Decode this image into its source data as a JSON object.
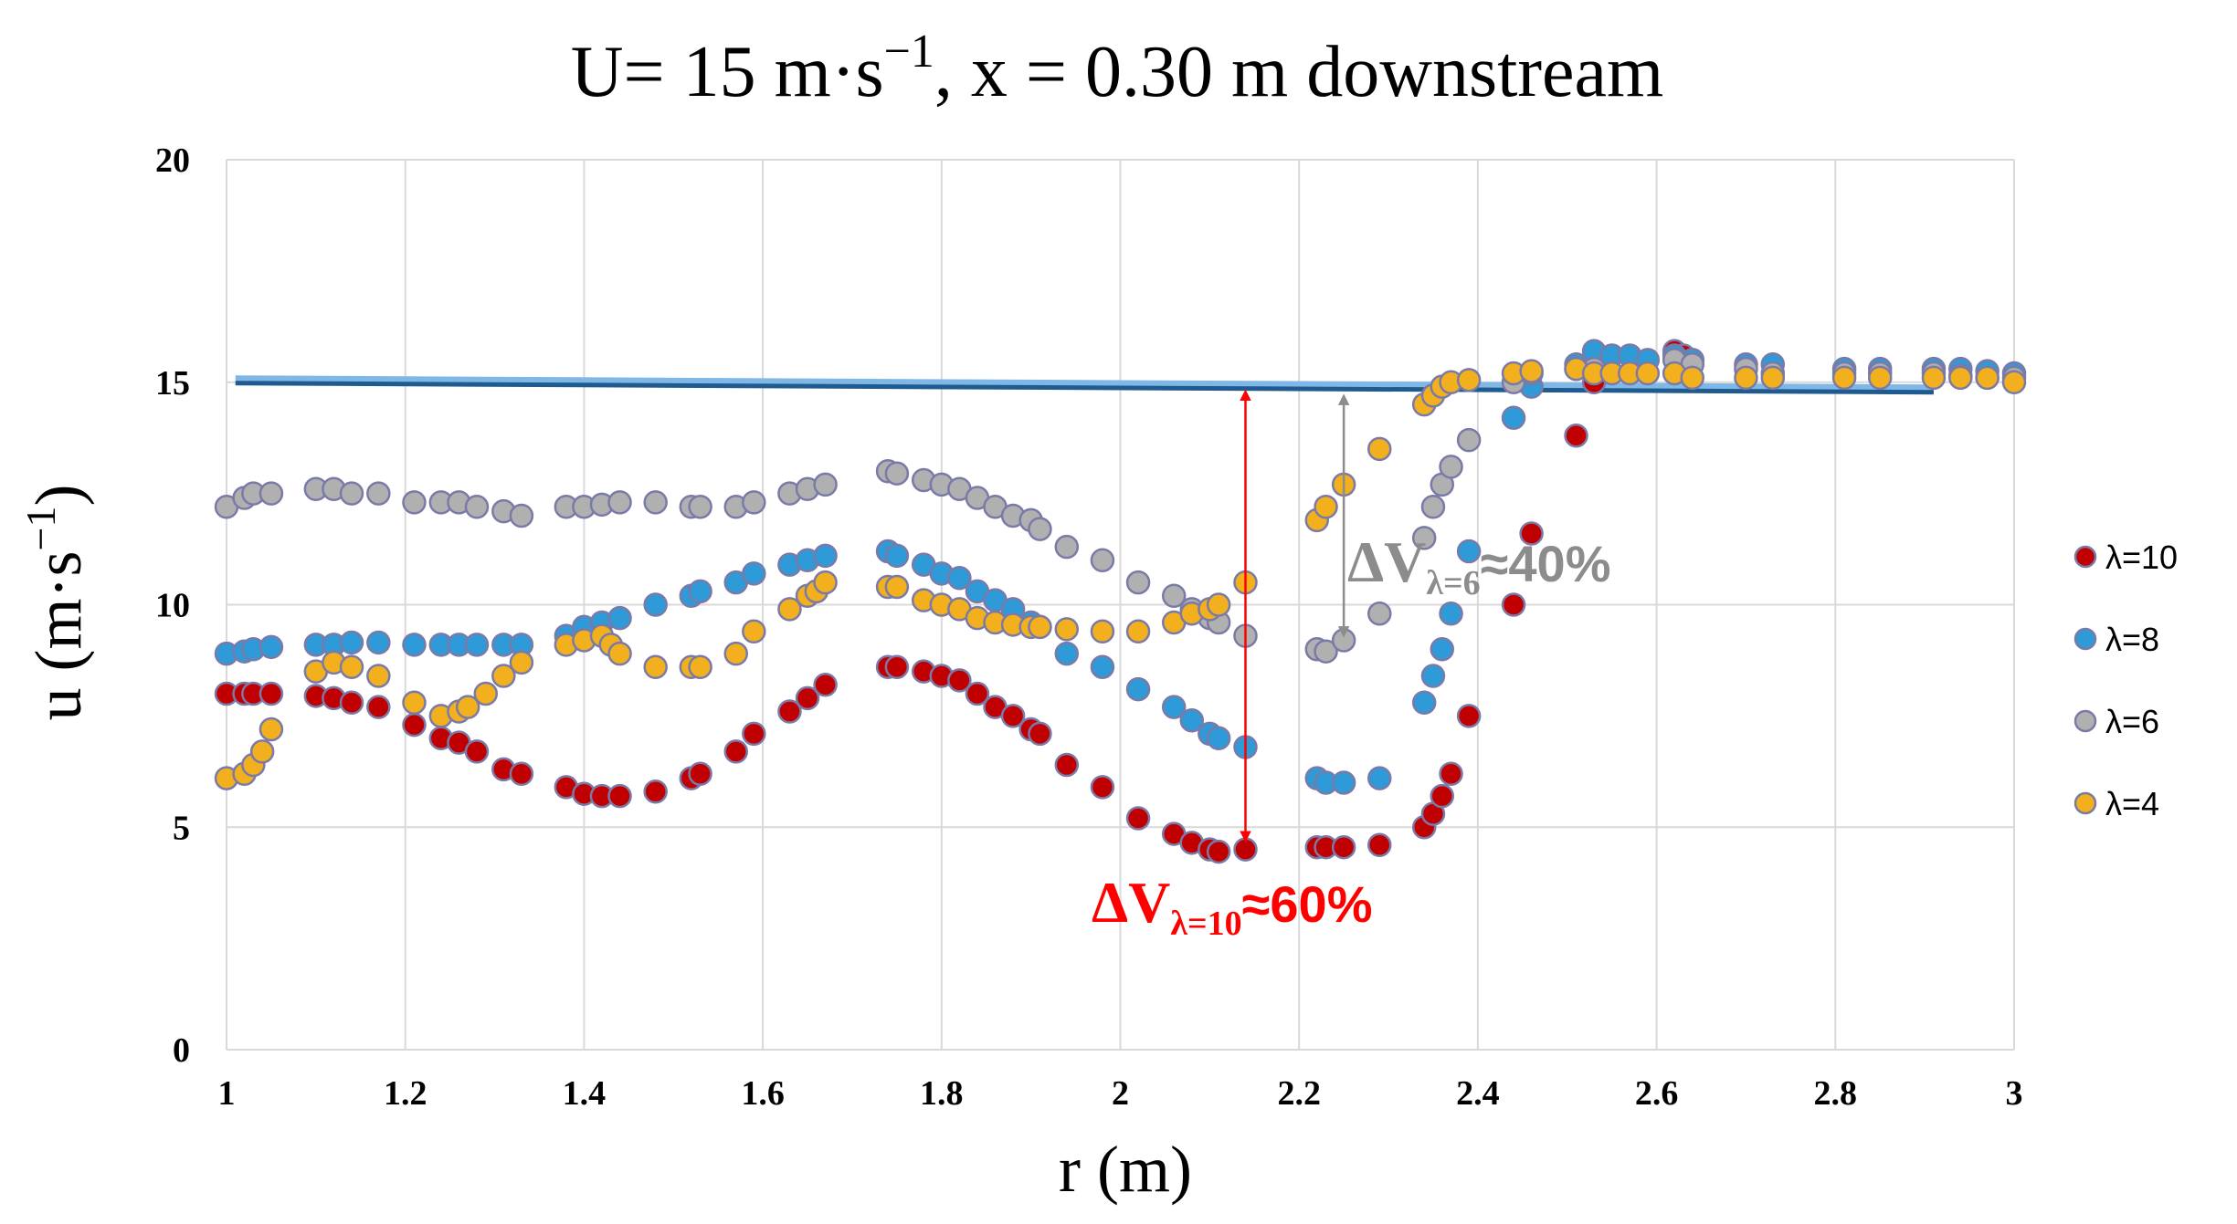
{
  "chart_data": {
    "type": "scatter",
    "title_parts": {
      "pre": "U= 15 m·s",
      "sup": "−1",
      "post": ", x = 0.30 m downstream"
    },
    "xlabel": "r (m)",
    "ylabel_parts": {
      "pre": "u (m·s",
      "sup": "−1",
      "post": ")"
    },
    "xlim": [
      1,
      3
    ],
    "ylim": [
      0,
      20
    ],
    "x_ticks": [
      "1",
      "1.2",
      "1.4",
      "1.6",
      "1.8",
      "2",
      "2.2",
      "2.4",
      "2.6",
      "2.8",
      "3"
    ],
    "y_ticks": [
      "0",
      "5",
      "10",
      "15",
      "20"
    ],
    "grid": true,
    "legend_position": "right",
    "reference_line": {
      "y": 15,
      "x_start": 1.01,
      "x_end": 2.91,
      "color": "#2e75b6"
    },
    "series": [
      {
        "name": "λ=10",
        "color": "#c00000",
        "points": [
          [
            1.0,
            8.0
          ],
          [
            1.02,
            8.0
          ],
          [
            1.03,
            8.0
          ],
          [
            1.05,
            8.0
          ],
          [
            1.1,
            7.95
          ],
          [
            1.12,
            7.9
          ],
          [
            1.14,
            7.8
          ],
          [
            1.17,
            7.7
          ],
          [
            1.21,
            7.3
          ],
          [
            1.24,
            7.0
          ],
          [
            1.26,
            6.9
          ],
          [
            1.28,
            6.7
          ],
          [
            1.31,
            6.3
          ],
          [
            1.33,
            6.2
          ],
          [
            1.38,
            5.9
          ],
          [
            1.4,
            5.75
          ],
          [
            1.42,
            5.7
          ],
          [
            1.44,
            5.7
          ],
          [
            1.48,
            5.8
          ],
          [
            1.52,
            6.1
          ],
          [
            1.53,
            6.2
          ],
          [
            1.57,
            6.7
          ],
          [
            1.59,
            7.1
          ],
          [
            1.63,
            7.6
          ],
          [
            1.65,
            7.9
          ],
          [
            1.67,
            8.2
          ],
          [
            1.74,
            8.6
          ],
          [
            1.75,
            8.6
          ],
          [
            1.78,
            8.5
          ],
          [
            1.8,
            8.4
          ],
          [
            1.82,
            8.3
          ],
          [
            1.84,
            8.0
          ],
          [
            1.86,
            7.7
          ],
          [
            1.88,
            7.5
          ],
          [
            1.9,
            7.2
          ],
          [
            1.91,
            7.1
          ],
          [
            1.94,
            6.4
          ],
          [
            1.98,
            5.9
          ],
          [
            2.02,
            5.2
          ],
          [
            2.06,
            4.85
          ],
          [
            2.08,
            4.65
          ],
          [
            2.1,
            4.5
          ],
          [
            2.11,
            4.45
          ],
          [
            2.14,
            4.5
          ],
          [
            2.22,
            4.55
          ],
          [
            2.23,
            4.55
          ],
          [
            2.25,
            4.55
          ],
          [
            2.29,
            4.6
          ],
          [
            2.34,
            5.0
          ],
          [
            2.35,
            5.3
          ],
          [
            2.36,
            5.7
          ],
          [
            2.37,
            6.2
          ],
          [
            2.39,
            7.5
          ],
          [
            2.44,
            10.0
          ],
          [
            2.46,
            11.6
          ],
          [
            2.51,
            13.8
          ],
          [
            2.53,
            15.0
          ],
          [
            2.62,
            15.7
          ],
          [
            2.63,
            15.6
          ],
          [
            2.64,
            15.5
          ]
        ]
      },
      {
        "name": "λ=8",
        "color": "#2e9ad8",
        "points": [
          [
            1.0,
            8.9
          ],
          [
            1.02,
            8.95
          ],
          [
            1.03,
            9.0
          ],
          [
            1.05,
            9.05
          ],
          [
            1.1,
            9.1
          ],
          [
            1.12,
            9.1
          ],
          [
            1.14,
            9.15
          ],
          [
            1.17,
            9.15
          ],
          [
            1.21,
            9.1
          ],
          [
            1.24,
            9.1
          ],
          [
            1.26,
            9.1
          ],
          [
            1.28,
            9.1
          ],
          [
            1.31,
            9.1
          ],
          [
            1.33,
            9.1
          ],
          [
            1.38,
            9.3
          ],
          [
            1.4,
            9.5
          ],
          [
            1.42,
            9.6
          ],
          [
            1.44,
            9.7
          ],
          [
            1.48,
            10.0
          ],
          [
            1.52,
            10.2
          ],
          [
            1.53,
            10.3
          ],
          [
            1.57,
            10.5
          ],
          [
            1.59,
            10.7
          ],
          [
            1.63,
            10.9
          ],
          [
            1.65,
            11.0
          ],
          [
            1.67,
            11.1
          ],
          [
            1.74,
            11.2
          ],
          [
            1.75,
            11.1
          ],
          [
            1.78,
            10.9
          ],
          [
            1.8,
            10.7
          ],
          [
            1.82,
            10.6
          ],
          [
            1.84,
            10.3
          ],
          [
            1.86,
            10.1
          ],
          [
            1.88,
            9.9
          ],
          [
            1.9,
            9.6
          ],
          [
            1.91,
            9.5
          ],
          [
            1.94,
            8.9
          ],
          [
            1.98,
            8.6
          ],
          [
            2.02,
            8.1
          ],
          [
            2.06,
            7.7
          ],
          [
            2.08,
            7.4
          ],
          [
            2.1,
            7.1
          ],
          [
            2.11,
            7.0
          ],
          [
            2.14,
            6.8
          ],
          [
            2.22,
            6.1
          ],
          [
            2.23,
            6.0
          ],
          [
            2.25,
            6.0
          ],
          [
            2.29,
            6.1
          ],
          [
            2.34,
            7.8
          ],
          [
            2.35,
            8.4
          ],
          [
            2.36,
            9.0
          ],
          [
            2.37,
            9.8
          ],
          [
            2.39,
            11.2
          ],
          [
            2.44,
            14.2
          ],
          [
            2.46,
            14.9
          ],
          [
            2.51,
            15.4
          ],
          [
            2.53,
            15.7
          ],
          [
            2.55,
            15.6
          ],
          [
            2.57,
            15.6
          ],
          [
            2.59,
            15.5
          ],
          [
            2.62,
            15.6
          ],
          [
            2.64,
            15.5
          ],
          [
            2.7,
            15.4
          ],
          [
            2.73,
            15.4
          ],
          [
            2.81,
            15.3
          ],
          [
            2.85,
            15.3
          ],
          [
            2.91,
            15.3
          ],
          [
            2.94,
            15.3
          ],
          [
            2.97,
            15.25
          ],
          [
            3.0,
            15.2
          ]
        ]
      },
      {
        "name": "λ=6",
        "color": "#b0b0b0",
        "points": [
          [
            1.0,
            12.2
          ],
          [
            1.02,
            12.4
          ],
          [
            1.03,
            12.5
          ],
          [
            1.05,
            12.5
          ],
          [
            1.1,
            12.6
          ],
          [
            1.12,
            12.6
          ],
          [
            1.14,
            12.5
          ],
          [
            1.17,
            12.5
          ],
          [
            1.21,
            12.3
          ],
          [
            1.24,
            12.3
          ],
          [
            1.26,
            12.3
          ],
          [
            1.28,
            12.2
          ],
          [
            1.31,
            12.1
          ],
          [
            1.33,
            12.0
          ],
          [
            1.38,
            12.2
          ],
          [
            1.4,
            12.2
          ],
          [
            1.42,
            12.25
          ],
          [
            1.44,
            12.3
          ],
          [
            1.48,
            12.3
          ],
          [
            1.52,
            12.2
          ],
          [
            1.53,
            12.2
          ],
          [
            1.57,
            12.2
          ],
          [
            1.59,
            12.3
          ],
          [
            1.63,
            12.5
          ],
          [
            1.65,
            12.6
          ],
          [
            1.67,
            12.7
          ],
          [
            1.74,
            13.0
          ],
          [
            1.75,
            12.95
          ],
          [
            1.78,
            12.8
          ],
          [
            1.8,
            12.7
          ],
          [
            1.82,
            12.6
          ],
          [
            1.84,
            12.4
          ],
          [
            1.86,
            12.2
          ],
          [
            1.88,
            12.0
          ],
          [
            1.9,
            11.9
          ],
          [
            1.91,
            11.7
          ],
          [
            1.94,
            11.3
          ],
          [
            1.98,
            11.0
          ],
          [
            2.02,
            10.5
          ],
          [
            2.06,
            10.2
          ],
          [
            2.08,
            9.9
          ],
          [
            2.1,
            9.7
          ],
          [
            2.11,
            9.6
          ],
          [
            2.14,
            9.3
          ],
          [
            2.22,
            9.0
          ],
          [
            2.23,
            8.95
          ],
          [
            2.25,
            9.2
          ],
          [
            2.29,
            9.8
          ],
          [
            2.34,
            11.5
          ],
          [
            2.35,
            12.2
          ],
          [
            2.36,
            12.7
          ],
          [
            2.37,
            13.1
          ],
          [
            2.39,
            13.7
          ],
          [
            2.44,
            15.0
          ],
          [
            2.46,
            15.2
          ],
          [
            2.51,
            15.3
          ],
          [
            2.53,
            15.3
          ],
          [
            2.62,
            15.5
          ],
          [
            2.64,
            15.4
          ],
          [
            2.7,
            15.3
          ],
          [
            2.73,
            15.2
          ],
          [
            2.81,
            15.2
          ],
          [
            2.85,
            15.2
          ],
          [
            2.91,
            15.2
          ],
          [
            2.94,
            15.15
          ],
          [
            2.97,
            15.1
          ],
          [
            3.0,
            15.1
          ]
        ]
      },
      {
        "name": "λ=4",
        "color": "#f2b01e",
        "points": [
          [
            1.0,
            6.1
          ],
          [
            1.02,
            6.2
          ],
          [
            1.03,
            6.4
          ],
          [
            1.04,
            6.7
          ],
          [
            1.05,
            7.2
          ],
          [
            1.1,
            8.5
          ],
          [
            1.12,
            8.7
          ],
          [
            1.14,
            8.6
          ],
          [
            1.17,
            8.4
          ],
          [
            1.21,
            7.8
          ],
          [
            1.24,
            7.5
          ],
          [
            1.26,
            7.6
          ],
          [
            1.27,
            7.7
          ],
          [
            1.29,
            8.0
          ],
          [
            1.31,
            8.4
          ],
          [
            1.33,
            8.7
          ],
          [
            1.38,
            9.1
          ],
          [
            1.4,
            9.2
          ],
          [
            1.42,
            9.3
          ],
          [
            1.43,
            9.1
          ],
          [
            1.44,
            8.9
          ],
          [
            1.48,
            8.6
          ],
          [
            1.52,
            8.6
          ],
          [
            1.53,
            8.6
          ],
          [
            1.57,
            8.9
          ],
          [
            1.59,
            9.4
          ],
          [
            1.63,
            9.9
          ],
          [
            1.65,
            10.2
          ],
          [
            1.66,
            10.3
          ],
          [
            1.67,
            10.5
          ],
          [
            1.74,
            10.4
          ],
          [
            1.75,
            10.4
          ],
          [
            1.78,
            10.1
          ],
          [
            1.8,
            10.0
          ],
          [
            1.82,
            9.9
          ],
          [
            1.84,
            9.7
          ],
          [
            1.86,
            9.6
          ],
          [
            1.88,
            9.55
          ],
          [
            1.9,
            9.5
          ],
          [
            1.91,
            9.5
          ],
          [
            1.94,
            9.45
          ],
          [
            1.98,
            9.4
          ],
          [
            2.02,
            9.4
          ],
          [
            2.06,
            9.6
          ],
          [
            2.08,
            9.8
          ],
          [
            2.1,
            9.9
          ],
          [
            2.11,
            10.0
          ],
          [
            2.14,
            10.5
          ],
          [
            2.22,
            11.9
          ],
          [
            2.23,
            12.2
          ],
          [
            2.25,
            12.7
          ],
          [
            2.29,
            13.5
          ],
          [
            2.34,
            14.5
          ],
          [
            2.35,
            14.7
          ],
          [
            2.36,
            14.9
          ],
          [
            2.37,
            15.0
          ],
          [
            2.39,
            15.05
          ],
          [
            2.44,
            15.2
          ],
          [
            2.46,
            15.25
          ],
          [
            2.51,
            15.3
          ],
          [
            2.53,
            15.2
          ],
          [
            2.55,
            15.2
          ],
          [
            2.57,
            15.2
          ],
          [
            2.59,
            15.2
          ],
          [
            2.62,
            15.2
          ],
          [
            2.64,
            15.1
          ],
          [
            2.7,
            15.1
          ],
          [
            2.73,
            15.1
          ],
          [
            2.81,
            15.1
          ],
          [
            2.85,
            15.1
          ],
          [
            2.91,
            15.1
          ],
          [
            2.94,
            15.1
          ],
          [
            2.97,
            15.1
          ],
          [
            3.0,
            15.0
          ]
        ]
      }
    ],
    "annotations": [
      {
        "label": "ΔV",
        "sub": "λ=10",
        "value": "≈60%",
        "color": "#ff0000",
        "arrow_x": 2.14,
        "arrow_y1": 15.0,
        "arrow_y2": 4.5
      },
      {
        "label": "ΔV",
        "sub": "λ=6",
        "value": "≈40%",
        "color": "#8c8c8c",
        "arrow_x": 2.25,
        "arrow_y1": 14.9,
        "arrow_y2": 9.1
      }
    ]
  }
}
